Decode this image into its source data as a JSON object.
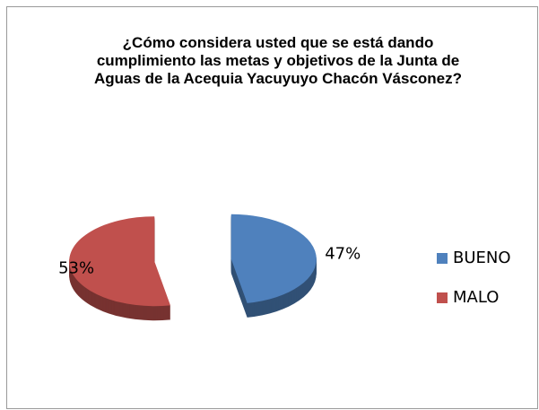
{
  "chart_data": {
    "type": "pie",
    "title": "¿Cómo considera usted que se está dando cumplimiento las metas y objetivos de la Junta de Aguas de la Acequia Yacuyuyo Chacón Vásconez?",
    "categories": [
      "BUENO",
      "MALO"
    ],
    "values": [
      47,
      53
    ],
    "value_labels": [
      "47%",
      "53%"
    ],
    "colors": [
      "#4f81bd",
      "#c0504d"
    ],
    "legend": "right"
  }
}
